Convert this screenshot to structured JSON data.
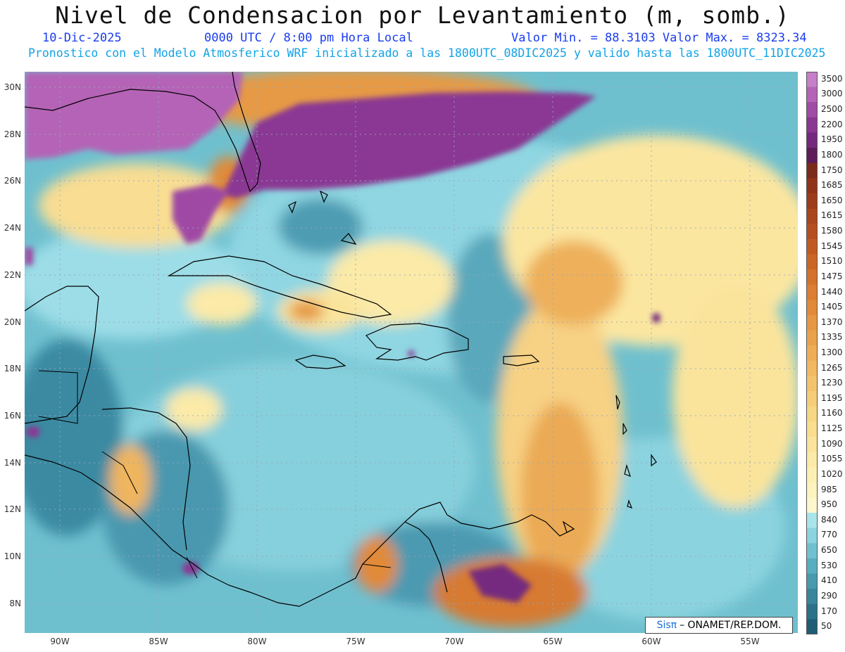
{
  "header": {
    "title": "Nivel de Condensacion por Levantamiento (m, somb.)",
    "date": "10-Dic-2025",
    "time": "0000 UTC / 8:00 pm Hora Local",
    "minmax": "Valor Min. = 88.3103  Valor Max. = 8323.34",
    "model_info": "Pronostico con el Modelo Atmosferico WRF inicializado a las 1800UTC_08DIC2025 y valido hasta las  1800UTC_11DIC2025"
  },
  "map": {
    "lat_labels": [
      "30N",
      "28N",
      "26N",
      "24N",
      "22N",
      "20N",
      "18N",
      "16N",
      "14N",
      "12N",
      "10N",
      "8N"
    ],
    "lon_labels": [
      "90W",
      "85W",
      "80W",
      "75W",
      "70W",
      "65W",
      "60W",
      "55W"
    ],
    "lon_range": [
      -92.0,
      -51.0
    ],
    "lat_range": [
      6.7,
      30.6
    ]
  },
  "colorbar": {
    "labels": [
      "3500",
      "3000",
      "2500",
      "2200",
      "1950",
      "1800",
      "1750",
      "1685",
      "1650",
      "1615",
      "1580",
      "1545",
      "1510",
      "1475",
      "1440",
      "1405",
      "1370",
      "1335",
      "1300",
      "1265",
      "1230",
      "1195",
      "1160",
      "1125",
      "1090",
      "1055",
      "1020",
      "985",
      "950",
      "840",
      "770",
      "650",
      "530",
      "410",
      "290",
      "170",
      "50"
    ],
    "colors": [
      "#c67fc9",
      "#b463b6",
      "#9f4aa4",
      "#8a3793",
      "#74297f",
      "#5e1c5a",
      "#7a2b1a",
      "#8f3418",
      "#9d3c1a",
      "#aa451c",
      "#b64f1f",
      "#c15a22",
      "#cb6626",
      "#d4712a",
      "#db7e31",
      "#e18a38",
      "#e59741",
      "#e9a24b",
      "#eeae55",
      "#f1b960",
      "#f3c36c",
      "#f5cd78",
      "#f7d684",
      "#f9de90",
      "#fae49c",
      "#fbeaa8",
      "#fcefb3",
      "#fdf3bf",
      "#fef7cb",
      "#a8e4ea",
      "#8bd3df",
      "#70c0d0",
      "#58adc0",
      "#4699af",
      "#38859d",
      "#2b718a",
      "#1f5d77"
    ]
  },
  "credit": {
    "brand": "Sisπ",
    "text": "– ONAMET/REP.DOM."
  }
}
